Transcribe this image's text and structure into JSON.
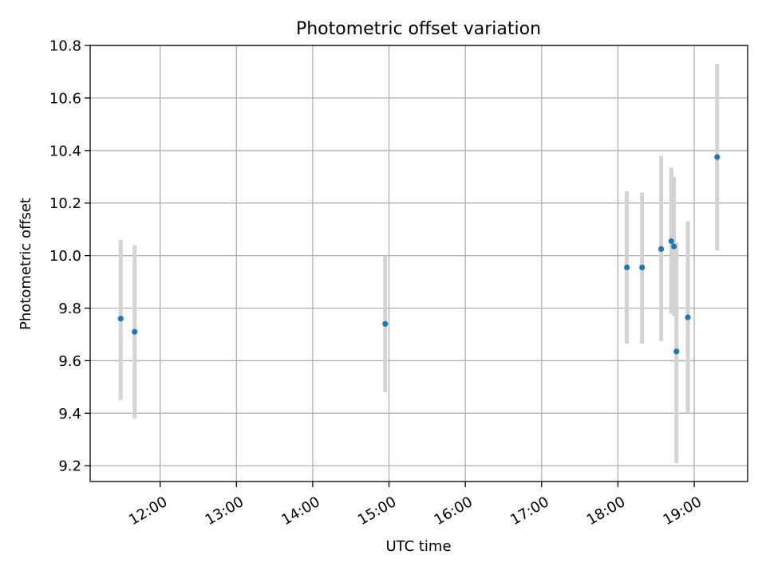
{
  "chart_data": {
    "type": "scatter",
    "title": "Photometric offset variation",
    "xlabel": "UTC time",
    "ylabel": "Photometric offset",
    "x_axis_type": "time",
    "xlim": [
      "11:05",
      "19:42"
    ],
    "ylim": [
      9.14,
      10.8
    ],
    "x_ticks": [
      "12:00",
      "13:00",
      "14:00",
      "15:00",
      "16:00",
      "17:00",
      "18:00",
      "19:00"
    ],
    "y_ticks": [
      9.2,
      9.4,
      9.6,
      9.8,
      10.0,
      10.2,
      10.4,
      10.6,
      10.8
    ],
    "grid": true,
    "marker_color": "#1f77b4",
    "errorbar_color": "#d3d3d3",
    "points": [
      {
        "x": "11:29",
        "y": 9.76,
        "y_low": 9.45,
        "y_high": 10.06
      },
      {
        "x": "11:40",
        "y": 9.71,
        "y_low": 9.38,
        "y_high": 10.04
      },
      {
        "x": "14:57",
        "y": 9.74,
        "y_low": 9.48,
        "y_high": 10.0
      },
      {
        "x": "18:07",
        "y": 9.955,
        "y_low": 9.665,
        "y_high": 10.245
      },
      {
        "x": "18:19",
        "y": 9.955,
        "y_low": 9.665,
        "y_high": 10.24
      },
      {
        "x": "18:34",
        "y": 10.025,
        "y_low": 9.675,
        "y_high": 10.38
      },
      {
        "x": "18:42",
        "y": 10.055,
        "y_low": 9.78,
        "y_high": 10.335
      },
      {
        "x": "18:44",
        "y": 10.035,
        "y_low": 9.77,
        "y_high": 10.3
      },
      {
        "x": "18:46",
        "y": 9.635,
        "y_low": 9.21,
        "y_high": 10.05
      },
      {
        "x": "18:55",
        "y": 9.765,
        "y_low": 9.4,
        "y_high": 10.13
      },
      {
        "x": "19:18",
        "y": 10.375,
        "y_low": 10.02,
        "y_high": 10.73
      }
    ]
  }
}
